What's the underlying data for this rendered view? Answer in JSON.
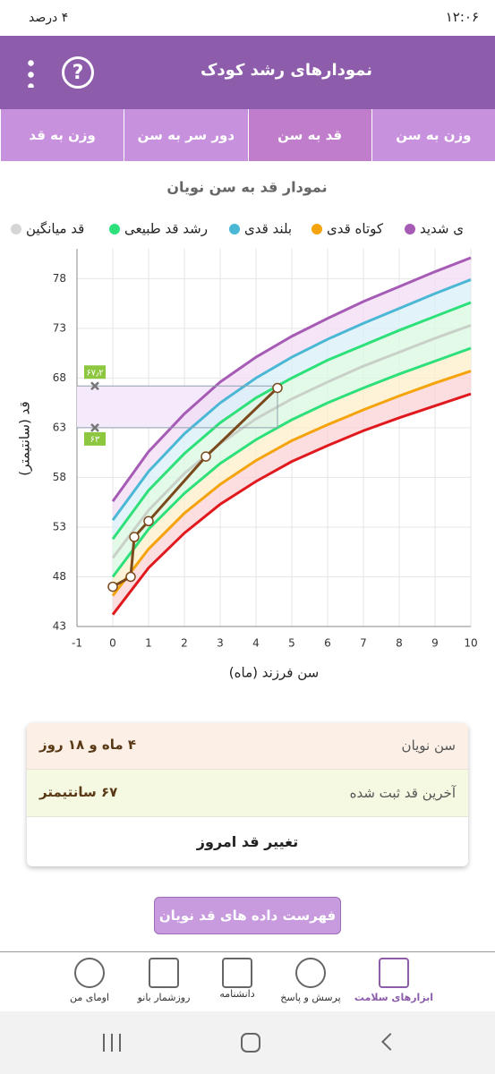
{
  "status_bar": {
    "time": "۱۲:۰۶",
    "battery": "۴ درصد"
  },
  "app_bar": {
    "title": "نمودارهای رشد کودک"
  },
  "tabs": [
    "وزن به سن",
    "قد به سن",
    "دور سر به سن",
    "وزن به قد"
  ],
  "chart_data": {
    "type": "line",
    "title": "نمودار قد به سن نویان",
    "legend": [
      {
        "name": "ی شدید",
        "color": "#a65bb5"
      },
      {
        "name": "کوتاه قدی",
        "color": "#f5a30a"
      },
      {
        "name": "بلند قدی",
        "color": "#4ab8d4"
      },
      {
        "name": "رشد قد طبیعی",
        "color": "#2ee07a"
      },
      {
        "name": "قد میانگین",
        "color": "#d5d5d5"
      }
    ],
    "x_label": "سن فرزند (ماه)",
    "y_label": "قد (سانتیمتر)",
    "x": [
      0,
      1,
      2,
      3,
      4,
      5,
      6,
      7,
      8,
      9,
      10
    ],
    "series": [
      {
        "color": "#e0191e",
        "values": [
          44.2,
          48.9,
          52.4,
          55.3,
          57.6,
          59.6,
          61.2,
          62.7,
          64.0,
          65.2,
          66.4
        ]
      },
      {
        "color": "#f5a30a",
        "values": [
          46.1,
          50.8,
          54.4,
          57.3,
          59.7,
          61.7,
          63.3,
          64.8,
          66.2,
          67.5,
          68.7
        ]
      },
      {
        "color": "#2ee07a",
        "values": [
          48.0,
          52.8,
          56.4,
          59.4,
          61.8,
          63.8,
          65.5,
          67.0,
          68.4,
          69.7,
          71.0
        ]
      },
      {
        "color": "#c8d0c8",
        "values": [
          49.9,
          54.7,
          58.4,
          61.4,
          63.9,
          65.9,
          67.6,
          69.2,
          70.6,
          72.0,
          73.3
        ]
      },
      {
        "color": "#2ee07a",
        "values": [
          51.8,
          56.7,
          60.4,
          63.5,
          66.0,
          68.0,
          69.8,
          71.3,
          72.8,
          74.2,
          75.6
        ]
      },
      {
        "color": "#4ab8d4",
        "values": [
          53.7,
          58.6,
          62.4,
          65.5,
          68.0,
          70.1,
          71.9,
          73.5,
          75.0,
          76.5,
          77.9
        ]
      },
      {
        "color": "#a65bb5",
        "values": [
          55.6,
          60.6,
          64.4,
          67.6,
          70.1,
          72.2,
          74.0,
          75.7,
          77.2,
          78.7,
          80.1
        ]
      }
    ],
    "band_colors": [
      "#fbd3d6",
      "#fdefc8",
      "#d9f8e2",
      "#d9f8e2",
      "#d8eff7",
      "#f1dcf4"
    ],
    "child": {
      "color": "#7b4a1c",
      "x": [
        0,
        0.5,
        0.6,
        1.0,
        2.6,
        4.6
      ],
      "values": [
        47.0,
        48.0,
        52.0,
        53.6,
        60.1,
        67.0
      ]
    },
    "guides": {
      "color": "#8ea1ad",
      "fill": "#f4eafb",
      "marker_x": -0.5,
      "values": [
        67.2,
        63
      ],
      "value_labels": [
        "۶۷٫۲",
        "۶۳"
      ]
    },
    "xlim": [
      -1,
      10
    ],
    "ylim": [
      43,
      81
    ],
    "xticks": [
      -1,
      0,
      1,
      2,
      3,
      4,
      5,
      6,
      7,
      8,
      9,
      10
    ],
    "yticks": [
      43,
      48,
      53,
      58,
      63,
      68,
      73,
      78
    ],
    "grid": true
  },
  "info_card": {
    "rows": [
      {
        "label": "سن نویان",
        "value": "۴ ماه و ۱۸ روز"
      },
      {
        "label": "آخرین قد ثبت شده",
        "value": "۶۷ سانتیمتر"
      }
    ],
    "action": "تغییر قد امروز"
  },
  "list_button": "فهرست داده های قد نویان",
  "bottom_nav": [
    "ابزارهای سلامت",
    "پرسش و پاسخ",
    "دانشنامه",
    "روزشمار بانو",
    "اومای من"
  ]
}
